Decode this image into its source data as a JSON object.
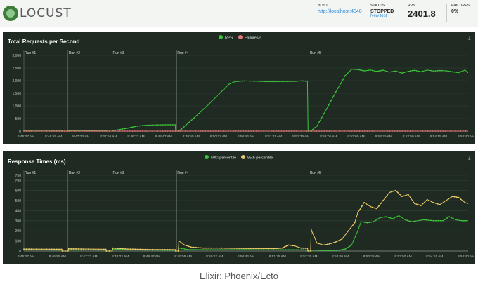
{
  "header": {
    "logo_text": "LOCUST",
    "host_label": "HOST",
    "host_value": "http://localhost:4040",
    "status_label": "STATUS",
    "status_value": "STOPPED",
    "new_test": "New test",
    "rps_label": "RPS",
    "rps_value": "2401.8",
    "failures_label": "FAILURES",
    "failures_value": "0%"
  },
  "caption": "Elixir: Phoenix/Ecto",
  "colors": {
    "rps": "#3cc43a",
    "failures": "#e5787a",
    "p50": "#3cc43a",
    "p95": "#eecb6a",
    "panel": "#1f2b22"
  },
  "chart_data": [
    {
      "type": "line",
      "title": "Total Requests per Second",
      "series": [
        {
          "name": "RPS",
          "points": [
            [
              0,
              5
            ],
            [
              12,
              5
            ],
            [
              12.2,
              0
            ],
            [
              14,
              0
            ],
            [
              14.2,
              10
            ],
            [
              26,
              10
            ],
            [
              26.2,
              0
            ],
            [
              28,
              0
            ],
            [
              28.2,
              20
            ],
            [
              33,
              120
            ],
            [
              36,
              200
            ],
            [
              40,
              240
            ],
            [
              45,
              250
            ],
            [
              48,
              250
            ],
            [
              48.2,
              0
            ],
            [
              49,
              0
            ],
            [
              50,
              80
            ],
            [
              54,
              520
            ],
            [
              58,
              980
            ],
            [
              62,
              1480
            ],
            [
              65,
              1850
            ],
            [
              67,
              1960
            ],
            [
              70,
              1990
            ],
            [
              78,
              1960
            ],
            [
              86,
              1970
            ],
            [
              88,
              1990
            ],
            [
              90,
              1980
            ],
            [
              90.2,
              0
            ],
            [
              91,
              0
            ],
            [
              93,
              200
            ],
            [
              96,
              860
            ],
            [
              99,
              1550
            ],
            [
              102,
              2200
            ],
            [
              104,
              2450
            ],
            [
              106,
              2440
            ],
            [
              108,
              2390
            ],
            [
              110,
              2420
            ],
            [
              112,
              2370
            ],
            [
              114,
              2410
            ],
            [
              116,
              2340
            ],
            [
              118,
              2380
            ],
            [
              120,
              2300
            ],
            [
              122,
              2370
            ],
            [
              124,
              2410
            ],
            [
              126,
              2350
            ],
            [
              128,
              2420
            ],
            [
              130,
              2380
            ],
            [
              132,
              2400
            ],
            [
              134,
              2390
            ],
            [
              136,
              2350
            ],
            [
              138,
              2320
            ],
            [
              140,
              2420
            ],
            [
              141,
              2310
            ]
          ]
        },
        {
          "name": "Failures/s",
          "points": [
            [
              0,
              0
            ],
            [
              141,
              0
            ]
          ]
        }
      ],
      "ylim": [
        0,
        3000
      ],
      "y_ticks": [
        "0",
        "500",
        "1,000",
        "1,500",
        "2,000",
        "2,500",
        "3,000"
      ],
      "x_ticks": [
        "8:46:27 AM",
        "8:46:55 AM",
        "8:47:22 AM",
        "8:47:56 AM",
        "8:48:22 AM",
        "8:48:47 AM",
        "8:49:55 AM",
        "8:50:22 AM",
        "8:50:46 AM",
        "8:51:11 AM",
        "8:51:35 AM",
        "8:52:05 AM",
        "8:53:00 AM",
        "8:53:25 AM",
        "8:53:50 AM",
        "8:54:15 AM",
        "8:54:40 AM"
      ],
      "markers": [
        {
          "label": "Run #1",
          "x": 0
        },
        {
          "label": "Run #2",
          "x": 14
        },
        {
          "label": "Run #3",
          "x": 28
        },
        {
          "label": "Run #4",
          "x": 48.5
        },
        {
          "label": "Run #5",
          "x": 90.5
        }
      ],
      "legend_position": "top-center",
      "grid": true
    },
    {
      "type": "line",
      "title": "Response Times (ms)",
      "series": [
        {
          "name": "50th percentile",
          "points": [
            [
              0,
              12
            ],
            [
              12,
              10
            ],
            [
              12.2,
              0
            ],
            [
              14,
              0
            ],
            [
              14.2,
              12
            ],
            [
              26,
              10
            ],
            [
              26.2,
              0
            ],
            [
              28,
              0
            ],
            [
              28.2,
              20
            ],
            [
              33,
              12
            ],
            [
              40,
              10
            ],
            [
              48,
              8
            ],
            [
              48.2,
              0
            ],
            [
              49,
              0
            ],
            [
              49.2,
              30
            ],
            [
              52,
              15
            ],
            [
              60,
              12
            ],
            [
              70,
              14
            ],
            [
              80,
              12
            ],
            [
              88,
              12
            ],
            [
              90,
              10
            ],
            [
              90.2,
              0
            ],
            [
              91,
              0
            ],
            [
              91.2,
              10
            ],
            [
              96,
              5
            ],
            [
              100,
              8
            ],
            [
              102,
              20
            ],
            [
              104,
              60
            ],
            [
              106,
              200
            ],
            [
              107,
              290
            ],
            [
              109,
              280
            ],
            [
              111,
              290
            ],
            [
              113,
              330
            ],
            [
              115,
              340
            ],
            [
              117,
              320
            ],
            [
              119,
              350
            ],
            [
              121,
              310
            ],
            [
              123,
              290
            ],
            [
              125,
              300
            ],
            [
              127,
              310
            ],
            [
              130,
              300
            ],
            [
              133,
              300
            ],
            [
              135,
              340
            ],
            [
              137,
              310
            ],
            [
              139,
              300
            ],
            [
              141,
              300
            ]
          ]
        },
        {
          "name": "95th percentile",
          "points": [
            [
              0,
              20
            ],
            [
              12,
              18
            ],
            [
              12.2,
              0
            ],
            [
              14,
              0
            ],
            [
              14.2,
              22
            ],
            [
              26,
              18
            ],
            [
              26.2,
              0
            ],
            [
              28,
              0
            ],
            [
              28.2,
              30
            ],
            [
              33,
              20
            ],
            [
              40,
              16
            ],
            [
              48,
              14
            ],
            [
              48.2,
              0
            ],
            [
              49,
              0
            ],
            [
              49.2,
              100
            ],
            [
              51,
              60
            ],
            [
              53,
              40
            ],
            [
              57,
              30
            ],
            [
              62,
              30
            ],
            [
              66,
              28
            ],
            [
              72,
              26
            ],
            [
              80,
              24
            ],
            [
              82,
              30
            ],
            [
              84,
              60
            ],
            [
              86,
              50
            ],
            [
              88,
              30
            ],
            [
              90,
              28
            ],
            [
              90.2,
              0
            ],
            [
              91,
              0
            ],
            [
              91.2,
              210
            ],
            [
              93,
              80
            ],
            [
              95,
              60
            ],
            [
              97,
              70
            ],
            [
              99,
              90
            ],
            [
              101,
              120
            ],
            [
              103,
              200
            ],
            [
              105,
              280
            ],
            [
              106,
              380
            ],
            [
              108,
              480
            ],
            [
              110,
              440
            ],
            [
              112,
              420
            ],
            [
              114,
              500
            ],
            [
              116,
              580
            ],
            [
              118,
              600
            ],
            [
              120,
              540
            ],
            [
              122,
              560
            ],
            [
              124,
              470
            ],
            [
              126,
              450
            ],
            [
              128,
              510
            ],
            [
              130,
              480
            ],
            [
              132,
              460
            ],
            [
              134,
              500
            ],
            [
              136,
              540
            ],
            [
              138,
              530
            ],
            [
              140,
              480
            ],
            [
              141,
              470
            ]
          ]
        }
      ],
      "ylim": [
        0,
        750
      ],
      "y_ticks": [
        "0",
        "100",
        "200",
        "300",
        "400",
        "500",
        "600",
        "700",
        "750"
      ],
      "x_ticks": [
        "8:46:27 AM",
        "8:46:55 AM",
        "8:47:22 AM",
        "8:48:22 AM",
        "8:48:47 AM",
        "8:49:55 AM",
        "8:50:22 AM",
        "8:50:46 AM",
        "8:51:35 AM",
        "8:52:30 AM",
        "8:53:00 AM",
        "8:53:25 AM",
        "8:53:50 AM",
        "8:54:15 AM",
        "8:54:40 AM"
      ],
      "markers": [
        {
          "label": "Run #1",
          "x": 0
        },
        {
          "label": "Run #2",
          "x": 14
        },
        {
          "label": "Run #3",
          "x": 28
        },
        {
          "label": "Run #4",
          "x": 48.5
        },
        {
          "label": "Run #5",
          "x": 90.5
        }
      ],
      "legend_position": "top-center",
      "grid": true
    }
  ]
}
